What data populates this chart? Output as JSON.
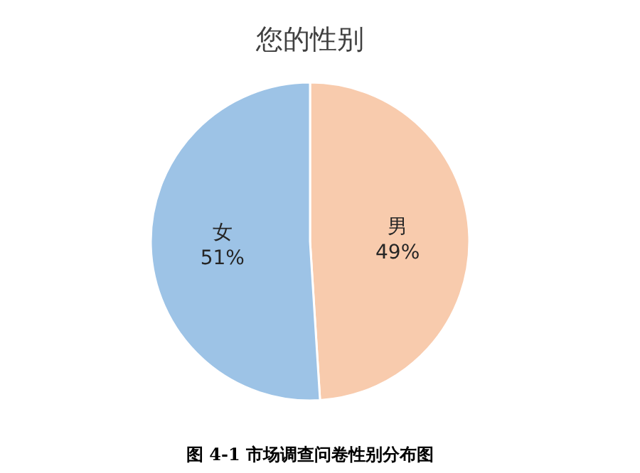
{
  "chart_data": {
    "type": "pie",
    "title": "您的性别",
    "categories": [
      "男",
      "女"
    ],
    "values": [
      49,
      51
    ],
    "colors": [
      "#f8cbad",
      "#9dc3e6"
    ],
    "value_labels": [
      "49%",
      "51%"
    ],
    "annotations": [
      "图 4-1 市场调查问卷性别分布图"
    ]
  }
}
